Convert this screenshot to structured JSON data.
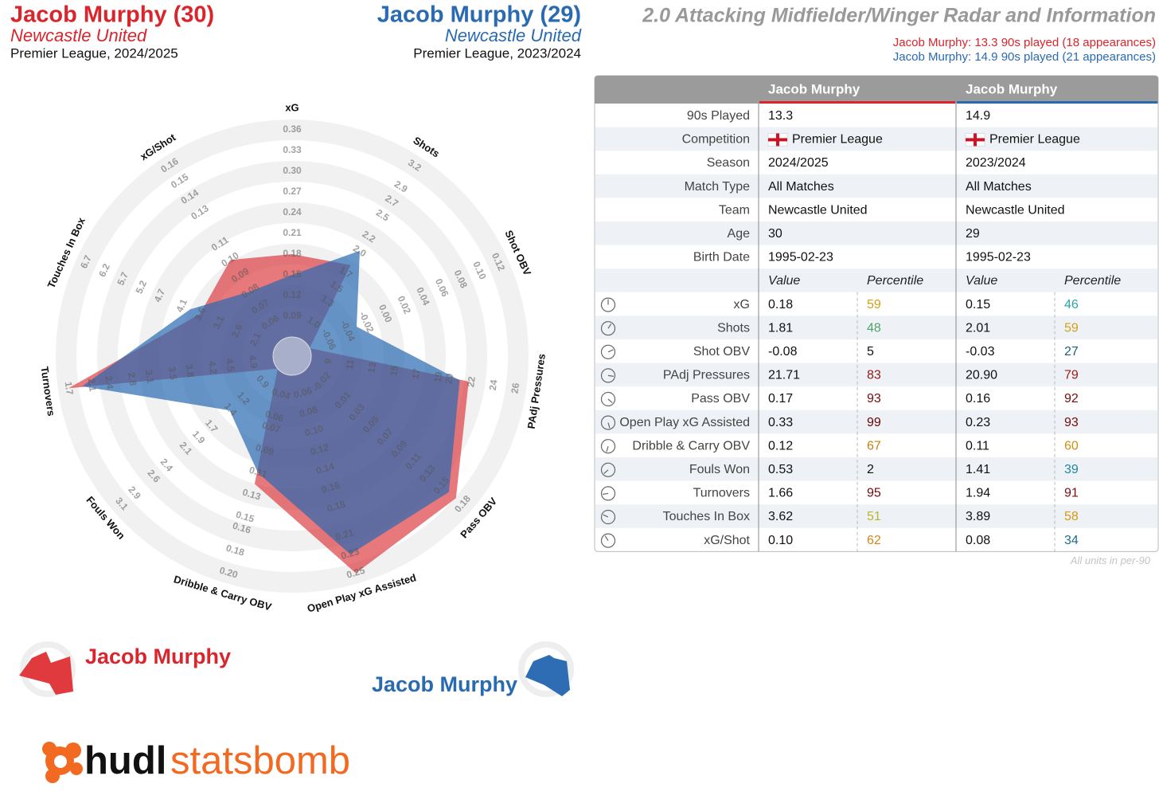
{
  "chart_data": {
    "type": "radar",
    "title": "2.0 Attacking Midfielder/Winger Radar and Information",
    "axes": [
      {
        "name": "xG",
        "lim": [
          0.06,
          0.36
        ],
        "ticks": [
          0.09,
          0.12,
          0.15,
          0.18,
          0.21,
          0.24,
          0.27,
          {
            "value": 0.3,
            "label": "0.30"
          },
          0.33,
          0.36
        ]
      },
      {
        "name": "Shots",
        "lim": [
          0.76,
          3.2
        ],
        "ticks": [
          {
            "value": 1,
            "label": "1.0"
          },
          1.3,
          1.5,
          1.7,
          {
            "value": 2,
            "label": "2.0"
          },
          2.2,
          2.5,
          2.7,
          2.9,
          3.2
        ]
      },
      {
        "name": "Shot OBV",
        "lim": [
          -0.08,
          0.12
        ],
        "ticks": [
          -0.06,
          -0.04,
          -0.02,
          {
            "value": 0,
            "label": "0.00"
          },
          0.02,
          0.04,
          0.06,
          0.08,
          {
            "value": 0.1,
            "label": "0.10"
          },
          0.12
        ]
      },
      {
        "name": "PAdj Pressures",
        "lim": [
          7.4,
          26
        ],
        "ticks": [
          9,
          11,
          13,
          15,
          17,
          19,
          20,
          22,
          24,
          26
        ]
      },
      {
        "name": "Pass OBV",
        "lim": [
          -0.042,
          0.18
        ],
        "ticks": [
          -0.02,
          0.01,
          0.03,
          0.05,
          0.07,
          0.09,
          0.11,
          0.13,
          0.15,
          0.18
        ]
      },
      {
        "name": "Open Play xG Assisted",
        "lim": [
          0.04,
          0.25
        ],
        "ticks": [
          0.06,
          0.08,
          {
            "value": 0.1,
            "label": "0.10"
          },
          0.12,
          0.14,
          0.16,
          0.18,
          0.21,
          0.23,
          0.25
        ]
      },
      {
        "name": "Dribble & Carry OBV",
        "lim": [
          0.022,
          0.2
        ],
        "ticks": [
          0.04,
          0.06,
          0.07,
          0.09,
          0.11,
          0.13,
          0.15,
          0.16,
          0.18,
          {
            "value": 0.2,
            "label": "0.20"
          }
        ]
      },
      {
        "name": "Fouls Won",
        "lim": [
          0.66,
          3.1
        ],
        "ticks": [
          0.9,
          1.2,
          1.4,
          1.7,
          1.9,
          2.1,
          2.4,
          2.6,
          2.9,
          3.1
        ]
      },
      {
        "name": "Turnovers",
        "lim": [
          5.26,
          1.7
        ],
        "ticks": [
          4.9,
          4.5,
          4.2,
          3.8,
          3.5,
          3.1,
          2.8,
          2.4,
          2.1,
          1.7
        ]
      },
      {
        "name": "Touches In Box",
        "lim": [
          1.59,
          6.7
        ],
        "ticks": [
          2.1,
          2.6,
          3.1,
          3.6,
          4.1,
          4.7,
          5.2,
          5.7,
          6.2,
          6.7
        ]
      },
      {
        "name": "xG/Shot",
        "lim": [
          0.049,
          0.16
        ],
        "ticks": [
          0.06,
          0.07,
          0.08,
          0.09,
          {
            "value": 0.1,
            "label": "0.10"
          },
          0.11,
          0.13,
          0.14,
          0.15,
          0.16
        ]
      }
    ],
    "series": [
      {
        "name": "Jacob Murphy",
        "color": "#d9252b",
        "values": [
          0.18,
          1.81,
          -0.08,
          21.71,
          0.17,
          0.33,
          0.12,
          0.53,
          1.66,
          3.62,
          0.1
        ]
      },
      {
        "name": "Jacob Murphy",
        "color": "#2a6ab0",
        "values": [
          0.15,
          2.01,
          -0.03,
          20.9,
          0.16,
          0.23,
          0.11,
          1.41,
          1.94,
          3.89,
          0.08
        ]
      }
    ]
  },
  "players": [
    {
      "title": "Jacob Murphy (30)",
      "team": "Newcastle United",
      "league_season": "Premier League, 2024/2025",
      "summary": "Jacob Murphy: 13.3 90s played (18 appearances)"
    },
    {
      "title": "Jacob Murphy (29)",
      "team": "Newcastle United",
      "league_season": "Premier League, 2023/2024",
      "summary": "Jacob Murphy: 14.9 90s played (21 appearances)"
    }
  ],
  "table": {
    "columns": [
      "Jacob Murphy",
      "Jacob Murphy"
    ],
    "info": [
      {
        "label": "90s Played",
        "values": [
          "13.3",
          "14.9"
        ]
      },
      {
        "label": "Competition",
        "values": [
          "Premier League",
          "Premier League"
        ]
      },
      {
        "label": "Season",
        "values": [
          "2024/2025",
          "2023/2024"
        ]
      },
      {
        "label": "Match Type",
        "values": [
          "All Matches",
          "All Matches"
        ]
      },
      {
        "label": "Team",
        "values": [
          "Newcastle United",
          "Newcastle United"
        ]
      },
      {
        "label": "Age",
        "values": [
          "30",
          "29"
        ]
      },
      {
        "label": "Birth Date",
        "values": [
          "1995-02-23",
          "1995-02-23"
        ]
      }
    ],
    "subheader": [
      "Value",
      "Percentile"
    ],
    "metrics": [
      {
        "label": "xG",
        "values": [
          "0.18",
          "0.15"
        ],
        "percentiles": [
          "59",
          "46"
        ],
        "percentile_colors": [
          "#d4a017",
          "#2aa6a6"
        ]
      },
      {
        "label": "Shots",
        "values": [
          "1.81",
          "2.01"
        ],
        "percentiles": [
          "48",
          "59"
        ],
        "percentile_colors": [
          "#4fa36a",
          "#d4a017"
        ]
      },
      {
        "label": "Shot OBV",
        "values": [
          "-0.08",
          "-0.03"
        ],
        "percentiles": [
          "5",
          "27"
        ],
        "percentile_colors": [
          "#111111",
          "#1b5f7a"
        ]
      },
      {
        "label": "PAdj Pressures",
        "values": [
          "21.71",
          "20.90"
        ],
        "percentiles": [
          "83",
          "79"
        ],
        "percentile_colors": [
          "#8e1a14",
          "#9b1c14"
        ]
      },
      {
        "label": "Pass OBV",
        "values": [
          "0.17",
          "0.16"
        ],
        "percentiles": [
          "93",
          "92"
        ],
        "percentile_colors": [
          "#760c0c",
          "#780c0c"
        ]
      },
      {
        "label": "Open Play xG Assisted",
        "values": [
          "0.33",
          "0.23"
        ],
        "percentiles": [
          "99",
          "93"
        ],
        "percentile_colors": [
          "#650505",
          "#760c0c"
        ]
      },
      {
        "label": "Dribble & Carry OBV",
        "values": [
          "0.12",
          "0.11"
        ],
        "percentiles": [
          "67",
          "60"
        ],
        "percentile_colors": [
          "#c5810e",
          "#cf900f"
        ]
      },
      {
        "label": "Fouls Won",
        "values": [
          "0.53",
          "1.41"
        ],
        "percentiles": [
          "2",
          "39"
        ],
        "percentile_colors": [
          "#111111",
          "#1e88a0"
        ]
      },
      {
        "label": "Turnovers",
        "values": [
          "1.66",
          "1.94"
        ],
        "percentiles": [
          "95",
          "91"
        ],
        "percentile_colors": [
          "#700a0a",
          "#7c0e0e"
        ]
      },
      {
        "label": "Touches In Box",
        "values": [
          "3.62",
          "3.89"
        ],
        "percentiles": [
          "51",
          "58"
        ],
        "percentile_colors": [
          "#b5b82a",
          "#d49a12"
        ]
      },
      {
        "label": "xG/Shot",
        "values": [
          "0.10",
          "0.08"
        ],
        "percentiles": [
          "62",
          "34"
        ],
        "percentile_colors": [
          "#d0861a",
          "#1f6d8c"
        ]
      }
    ],
    "footnote": "All units in per-90"
  },
  "logo": [
    "hudl",
    "statsbomb"
  ]
}
